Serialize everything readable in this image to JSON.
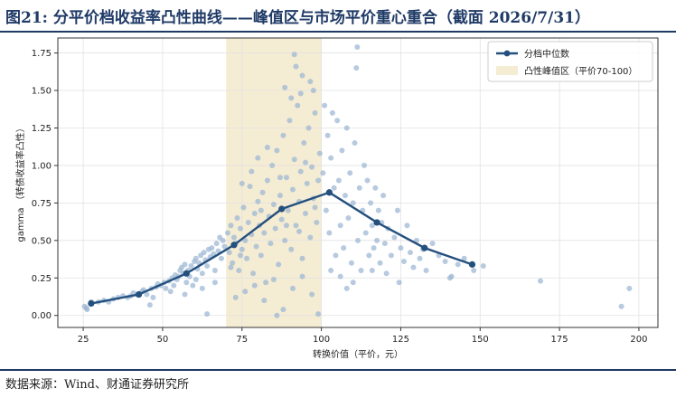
{
  "header": {
    "title": "图21: 分平价档收益率凸性曲线——峰值区与市场平价重心重合（截面 2026/7/31）"
  },
  "footer": {
    "source": "数据来源：Wind、财通证券研究所"
  },
  "chart_data": {
    "type": "scatter",
    "xlabel": "转换价值（平价，元）",
    "ylabel": "gamma （转债收益率凸性）",
    "xlim": [
      17,
      206
    ],
    "ylim": [
      -0.08,
      1.85
    ],
    "xticks": [
      25,
      50,
      75,
      100,
      125,
      150,
      175,
      200
    ],
    "yticks": [
      0.0,
      0.25,
      0.5,
      0.75,
      1.0,
      1.25,
      1.5,
      1.75
    ],
    "ytick_labels": [
      "0.00",
      "0.25",
      "0.50",
      "0.75",
      "1.00",
      "1.25",
      "1.50",
      "1.75"
    ],
    "grid": true,
    "legend_position": "top-right",
    "shaded_band": {
      "label": "凸性峰值区（平价70-100）",
      "x_range": [
        70,
        100
      ],
      "color": "#f5ecd4"
    },
    "median_line": {
      "name": "分档中位数",
      "color": "#24507e",
      "x": [
        27.5,
        42.5,
        57.5,
        72.5,
        87.5,
        102.5,
        117.5,
        132.5,
        147.5
      ],
      "y": [
        0.08,
        0.14,
        0.28,
        0.47,
        0.71,
        0.82,
        0.62,
        0.45,
        0.34
      ]
    },
    "scatter_color": "#9bb5d2",
    "scatter_points": [
      [
        25.4,
        0.06
      ],
      [
        26.2,
        0.04
      ],
      [
        26.0,
        0.05
      ],
      [
        27.5,
        0.09
      ],
      [
        29.8,
        0.09
      ],
      [
        31.5,
        0.1
      ],
      [
        33.0,
        0.09
      ],
      [
        34.5,
        0.11
      ],
      [
        36.0,
        0.12
      ],
      [
        37.5,
        0.13
      ],
      [
        39.0,
        0.12
      ],
      [
        40.0,
        0.13
      ],
      [
        40.8,
        0.15
      ],
      [
        42.0,
        0.14
      ],
      [
        43.5,
        0.16
      ],
      [
        44.0,
        0.17
      ],
      [
        45.0,
        0.14
      ],
      [
        46.5,
        0.18
      ],
      [
        47.0,
        0.12
      ],
      [
        48.0,
        0.19
      ],
      [
        48.5,
        0.21
      ],
      [
        49.5,
        0.2
      ],
      [
        50.5,
        0.22
      ],
      [
        51.0,
        0.18
      ],
      [
        52.0,
        0.23
      ],
      [
        53.0,
        0.25
      ],
      [
        53.5,
        0.2
      ],
      [
        54.0,
        0.27
      ],
      [
        54.5,
        0.24
      ],
      [
        55.0,
        0.26
      ],
      [
        55.5,
        0.3
      ],
      [
        56.0,
        0.32
      ],
      [
        56.5,
        0.28
      ],
      [
        57.0,
        0.34
      ],
      [
        57.5,
        0.22
      ],
      [
        58.0,
        0.3
      ],
      [
        58.5,
        0.26
      ],
      [
        59.0,
        0.33
      ],
      [
        59.5,
        0.2
      ],
      [
        60.0,
        0.36
      ],
      [
        60.5,
        0.38
      ],
      [
        61.0,
        0.31
      ],
      [
        61.5,
        0.35
      ],
      [
        62.0,
        0.4
      ],
      [
        62.5,
        0.28
      ],
      [
        63.0,
        0.42
      ],
      [
        63.5,
        0.37
      ],
      [
        64.0,
        0.33
      ],
      [
        64.5,
        0.44
      ],
      [
        65.0,
        0.39
      ],
      [
        65.5,
        0.45
      ],
      [
        66.0,
        0.41
      ],
      [
        66.5,
        0.3
      ],
      [
        67.0,
        0.48
      ],
      [
        67.5,
        0.43
      ],
      [
        68.0,
        0.52
      ],
      [
        68.5,
        0.38
      ],
      [
        69.0,
        0.5
      ],
      [
        69.5,
        0.46
      ],
      [
        46.0,
        0.07
      ],
      [
        62.5,
        0.18
      ],
      [
        64.0,
        0.01
      ],
      [
        66.5,
        0.22
      ],
      [
        52.5,
        0.16
      ],
      [
        57.0,
        0.14
      ],
      [
        60.5,
        0.24
      ],
      [
        70.5,
        0.55
      ],
      [
        71.0,
        0.42
      ],
      [
        71.5,
        0.6
      ],
      [
        72.0,
        0.35
      ],
      [
        72.5,
        0.52
      ],
      [
        73.0,
        0.48
      ],
      [
        73.5,
        0.65
      ],
      [
        74.0,
        0.3
      ],
      [
        74.5,
        0.58
      ],
      [
        75.0,
        0.44
      ],
      [
        75.5,
        0.72
      ],
      [
        76.0,
        0.5
      ],
      [
        76.5,
        0.38
      ],
      [
        77.0,
        0.62
      ],
      [
        77.5,
        0.86
      ],
      [
        78.0,
        0.54
      ],
      [
        78.5,
        0.28
      ],
      [
        79.0,
        0.68
      ],
      [
        79.5,
        0.46
      ],
      [
        80.0,
        0.76
      ],
      [
        80.5,
        0.6
      ],
      [
        81.0,
        0.4
      ],
      [
        81.5,
        0.82
      ],
      [
        82.0,
        0.55
      ],
      [
        82.5,
        0.22
      ],
      [
        83.0,
        0.9
      ],
      [
        83.5,
        0.66
      ],
      [
        84.0,
        0.48
      ],
      [
        84.5,
        1.0
      ],
      [
        85.0,
        0.74
      ],
      [
        85.5,
        0.58
      ],
      [
        86.0,
        1.1
      ],
      [
        86.5,
        0.34
      ],
      [
        87.0,
        0.8
      ],
      [
        87.5,
        0.64
      ],
      [
        88.0,
        1.2
      ],
      [
        88.5,
        0.5
      ],
      [
        89.0,
        0.92
      ],
      [
        89.5,
        0.7
      ],
      [
        90.0,
        1.3
      ],
      [
        90.5,
        0.44
      ],
      [
        91.0,
        0.84
      ],
      [
        91.5,
        1.04
      ],
      [
        92.0,
        0.6
      ],
      [
        92.5,
        1.4
      ],
      [
        93.0,
        0.76
      ],
      [
        93.5,
        0.96
      ],
      [
        94.0,
        0.38
      ],
      [
        94.5,
        1.15
      ],
      [
        95.0,
        0.68
      ],
      [
        95.5,
        0.88
      ],
      [
        96.0,
        1.25
      ],
      [
        96.5,
        0.52
      ],
      [
        97.0,
        0.99
      ],
      [
        97.5,
        0.78
      ],
      [
        98.0,
        1.35
      ],
      [
        98.5,
        0.62
      ],
      [
        99.0,
        0.9
      ],
      [
        99.5,
        1.08
      ],
      [
        73.0,
        0.12
      ],
      [
        76.0,
        0.16
      ],
      [
        79.0,
        0.2
      ],
      [
        82.0,
        0.1
      ],
      [
        85.0,
        0.24
      ],
      [
        88.0,
        0.04
      ],
      [
        91.0,
        0.18
      ],
      [
        94.0,
        0.26
      ],
      [
        97.0,
        0.14
      ],
      [
        99.0,
        0.01
      ],
      [
        86.0,
        0.0
      ],
      [
        91.5,
        1.74
      ],
      [
        92.0,
        1.66
      ],
      [
        94.0,
        1.6
      ],
      [
        96.5,
        1.56
      ],
      [
        88.5,
        1.52
      ],
      [
        90.5,
        1.45
      ],
      [
        93.5,
        1.48
      ],
      [
        97.5,
        1.5
      ],
      [
        80.0,
        1.05
      ],
      [
        83.0,
        1.12
      ],
      [
        78.0,
        0.96
      ],
      [
        75.0,
        0.88
      ],
      [
        81.0,
        0.7
      ],
      [
        87.0,
        0.92
      ],
      [
        89.0,
        0.6
      ],
      [
        93.0,
        0.56
      ],
      [
        95.0,
        1.02
      ],
      [
        98.0,
        0.72
      ],
      [
        71.5,
        0.32
      ],
      [
        74.5,
        0.4
      ],
      [
        100.5,
        0.95
      ],
      [
        101.0,
        1.4
      ],
      [
        101.5,
        0.7
      ],
      [
        102.0,
        1.2
      ],
      [
        102.5,
        0.55
      ],
      [
        103.0,
        1.05
      ],
      [
        103.5,
        1.35
      ],
      [
        104.0,
        0.85
      ],
      [
        104.5,
        0.4
      ],
      [
        105.0,
        1.3
      ],
      [
        105.5,
        0.9
      ],
      [
        106.0,
        0.6
      ],
      [
        106.5,
        1.1
      ],
      [
        107.0,
        0.45
      ],
      [
        107.5,
        0.8
      ],
      [
        108.0,
        1.25
      ],
      [
        108.5,
        0.65
      ],
      [
        109.0,
        0.95
      ],
      [
        109.5,
        0.35
      ],
      [
        110.0,
        0.75
      ],
      [
        110.5,
        1.15
      ],
      [
        111.0,
        1.65
      ],
      [
        111.5,
        0.5
      ],
      [
        112.0,
        0.85
      ],
      [
        112.5,
        0.3
      ],
      [
        113.0,
        0.7
      ],
      [
        113.5,
        1.0
      ],
      [
        114.0,
        0.55
      ],
      [
        114.5,
        0.9
      ],
      [
        115.0,
        0.4
      ],
      [
        115.5,
        0.75
      ],
      [
        116.0,
        0.6
      ],
      [
        116.5,
        0.45
      ],
      [
        117.0,
        0.85
      ],
      [
        117.5,
        0.5
      ],
      [
        118.0,
        0.7
      ],
      [
        118.5,
        0.35
      ],
      [
        119.0,
        0.62
      ],
      [
        119.5,
        0.8
      ],
      [
        120.0,
        0.48
      ],
      [
        121.0,
        0.58
      ],
      [
        122.0,
        0.4
      ],
      [
        123.0,
        0.52
      ],
      [
        124.0,
        0.7
      ],
      [
        125.0,
        0.45
      ],
      [
        126.0,
        0.36
      ],
      [
        127.0,
        0.6
      ],
      [
        128.0,
        0.42
      ],
      [
        129.0,
        0.32
      ],
      [
        130.0,
        0.5
      ],
      [
        131.0,
        0.38
      ],
      [
        132.0,
        0.44
      ],
      [
        133.0,
        0.3
      ],
      [
        135.0,
        0.48
      ],
      [
        137.0,
        0.4
      ],
      [
        139.0,
        0.36
      ],
      [
        141.0,
        0.26
      ],
      [
        143.0,
        0.34
      ],
      [
        145.0,
        0.38
      ],
      [
        148.0,
        0.3
      ],
      [
        111.3,
        1.79
      ],
      [
        120.5,
        0.28
      ],
      [
        124.5,
        0.22
      ],
      [
        110.0,
        0.22
      ],
      [
        116.0,
        0.3
      ],
      [
        106.0,
        0.26
      ],
      [
        103.0,
        0.3
      ],
      [
        108.0,
        0.18
      ],
      [
        140.5,
        0.25
      ],
      [
        151.0,
        0.33
      ],
      [
        169.0,
        0.23
      ],
      [
        194.5,
        0.06
      ],
      [
        197.0,
        0.18
      ]
    ]
  }
}
